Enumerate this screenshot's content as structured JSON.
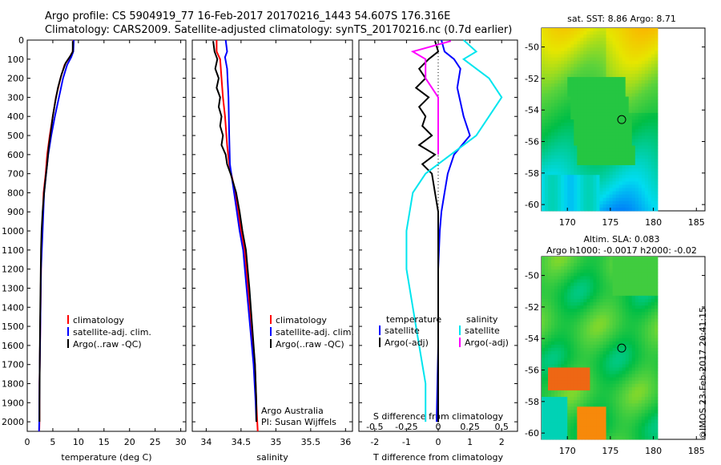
{
  "header": {
    "line1": "Argo profile: CS 5904919_77 16-Feb-2017 20170216_1443 54.607S 176.316E",
    "line2": "Climatology: CARS2009. Satellite-adjusted climatology: synTS_20170216.nc (0.7d earlier)"
  },
  "stamp": "©IMOS 23-Feb-2017 20:41:15",
  "colors": {
    "climatology": "#ff0000",
    "satellite": "#0000ff",
    "argo": "#000000",
    "sat_salinity": "#00e5ee",
    "argo_salinity": "#ff00ff"
  },
  "chart_data": [
    {
      "type": "line",
      "xlabel": "temperature (deg C)",
      "ylabel": "",
      "xlim": [
        0,
        31
      ],
      "ylim": [
        2050,
        0
      ],
      "xticks": [
        "0",
        "5",
        "10",
        "15",
        "20",
        "25",
        "30"
      ],
      "yticks": [
        "0",
        "100",
        "200",
        "300",
        "400",
        "500",
        "600",
        "700",
        "800",
        "900",
        "1000",
        "1100",
        "1200",
        "1300",
        "1400",
        "1500",
        "1600",
        "1700",
        "1800",
        "1900",
        "2000"
      ],
      "legend": [
        "climatology",
        "satellite-adj. clim.",
        "Argo(..raw -QC)"
      ],
      "series": [
        {
          "name": "climatology",
          "color": "#ff0000",
          "points": [
            [
              9.0,
              0
            ],
            [
              8.9,
              60
            ],
            [
              8.3,
              90
            ],
            [
              7.3,
              130
            ],
            [
              6.5,
              200
            ],
            [
              5.6,
              300
            ],
            [
              5.0,
              400
            ],
            [
              4.4,
              500
            ],
            [
              3.9,
              600
            ],
            [
              3.6,
              700
            ],
            [
              3.2,
              800
            ],
            [
              2.9,
              1000
            ],
            [
              2.7,
              1200
            ],
            [
              2.6,
              1400
            ],
            [
              2.5,
              1600
            ],
            [
              2.4,
              1800
            ],
            [
              2.4,
              2000
            ],
            [
              2.35,
              2050
            ]
          ]
        },
        {
          "name": "satellite-adj. clim.",
          "color": "#0000ff",
          "points": [
            [
              9.1,
              0
            ],
            [
              9.0,
              60
            ],
            [
              8.6,
              90
            ],
            [
              7.8,
              130
            ],
            [
              7.0,
              200
            ],
            [
              6.2,
              300
            ],
            [
              5.4,
              400
            ],
            [
              4.7,
              500
            ],
            [
              4.1,
              600
            ],
            [
              3.7,
              700
            ],
            [
              3.3,
              800
            ],
            [
              3.0,
              1000
            ],
            [
              2.7,
              1200
            ],
            [
              2.6,
              1400
            ],
            [
              2.5,
              1600
            ],
            [
              2.4,
              1800
            ],
            [
              2.35,
              2000
            ],
            [
              2.3,
              2050
            ]
          ]
        },
        {
          "name": "Argo(..raw -QC)",
          "color": "#000000",
          "points": [
            [
              8.9,
              5
            ],
            [
              8.9,
              60
            ],
            [
              8.5,
              80
            ],
            [
              7.5,
              120
            ],
            [
              6.7,
              180
            ],
            [
              6.0,
              250
            ],
            [
              5.5,
              320
            ],
            [
              5.0,
              400
            ],
            [
              4.6,
              480
            ],
            [
              4.2,
              560
            ],
            [
              3.9,
              650
            ],
            [
              3.6,
              720
            ],
            [
              3.3,
              800
            ],
            [
              3.0,
              900
            ],
            [
              2.8,
              1000
            ],
            [
              2.7,
              1100
            ],
            [
              2.6,
              1300
            ],
            [
              2.5,
              1500
            ],
            [
              2.45,
              1700
            ],
            [
              2.4,
              1900
            ],
            [
              2.4,
              2000
            ]
          ]
        }
      ]
    },
    {
      "type": "line",
      "xlabel": "salinity",
      "xlim": [
        33.8,
        36.1
      ],
      "ylim": [
        2050,
        0
      ],
      "xticks": [
        "34",
        "34.5",
        "35",
        "35.5",
        "36"
      ],
      "legend": [
        "climatology",
        "satellite-adj. clim.",
        "Argo(..raw -QC)"
      ],
      "annotation": [
        "Argo Australia",
        "PI: Susan Wijffels"
      ],
      "series": [
        {
          "name": "climatology",
          "color": "#ff0000",
          "points": [
            [
              34.15,
              0
            ],
            [
              34.15,
              60
            ],
            [
              34.2,
              100
            ],
            [
              34.22,
              200
            ],
            [
              34.24,
              300
            ],
            [
              34.27,
              400
            ],
            [
              34.3,
              550
            ],
            [
              34.33,
              650
            ],
            [
              34.36,
              700
            ],
            [
              34.42,
              800
            ],
            [
              34.46,
              900
            ],
            [
              34.5,
              1000
            ],
            [
              34.55,
              1100
            ],
            [
              34.6,
              1300
            ],
            [
              34.65,
              1500
            ],
            [
              34.7,
              1700
            ],
            [
              34.72,
              1900
            ],
            [
              34.74,
              2050
            ]
          ]
        },
        {
          "name": "satellite-adj. clim.",
          "color": "#0000ff",
          "points": [
            [
              34.28,
              0
            ],
            [
              34.3,
              60
            ],
            [
              34.27,
              90
            ],
            [
              34.3,
              150
            ],
            [
              34.32,
              300
            ],
            [
              34.33,
              500
            ],
            [
              34.34,
              650
            ],
            [
              34.36,
              700
            ],
            [
              34.4,
              800
            ],
            [
              34.44,
              900
            ],
            [
              34.48,
              1000
            ],
            [
              34.53,
              1100
            ],
            [
              34.58,
              1300
            ],
            [
              34.63,
              1500
            ],
            [
              34.68,
              1700
            ],
            [
              34.71,
              1900
            ],
            [
              34.72,
              2000
            ]
          ]
        },
        {
          "name": "Argo(..raw -QC)",
          "color": "#000000",
          "points": [
            [
              34.1,
              5
            ],
            [
              34.12,
              60
            ],
            [
              34.16,
              100
            ],
            [
              34.13,
              150
            ],
            [
              34.18,
              200
            ],
            [
              34.15,
              250
            ],
            [
              34.2,
              300
            ],
            [
              34.18,
              350
            ],
            [
              34.22,
              400
            ],
            [
              34.2,
              450
            ],
            [
              34.24,
              500
            ],
            [
              34.22,
              550
            ],
            [
              34.28,
              600
            ],
            [
              34.3,
              650
            ],
            [
              34.35,
              700
            ],
            [
              34.43,
              800
            ],
            [
              34.48,
              900
            ],
            [
              34.52,
              1000
            ],
            [
              34.57,
              1100
            ],
            [
              34.62,
              1300
            ],
            [
              34.66,
              1500
            ],
            [
              34.7,
              1700
            ],
            [
              34.72,
              1900
            ],
            [
              34.72,
              2000
            ]
          ]
        }
      ]
    },
    {
      "type": "line",
      "xlabel": "T difference from climatology",
      "xlabel2": "S difference from climatology",
      "xlim": [
        -2.5,
        2.5
      ],
      "ylim": [
        2050,
        0
      ],
      "xticks": [
        "-2",
        "-1",
        "0",
        "1",
        "2"
      ],
      "xticks2": [
        "-0.5",
        "-0.25",
        "0",
        "0.25",
        "0.5"
      ],
      "legend_headers": [
        "temperature",
        "salinity"
      ],
      "legend": [
        "satellite",
        "Argo(-adj)",
        "satellite",
        "Argo(-adj)"
      ],
      "series": [
        {
          "name": "satellite",
          "group": "temperature",
          "color": "#0000ff",
          "points": [
            [
              0.1,
              0
            ],
            [
              0.2,
              60
            ],
            [
              0.5,
              100
            ],
            [
              0.7,
              150
            ],
            [
              0.6,
              250
            ],
            [
              0.8,
              400
            ],
            [
              1.0,
              500
            ],
            [
              0.7,
              560
            ],
            [
              0.5,
              600
            ],
            [
              0.3,
              700
            ],
            [
              0.2,
              800
            ],
            [
              0.1,
              900
            ],
            [
              0.05,
              1000
            ],
            [
              0.0,
              1200
            ],
            [
              0.0,
              1600
            ],
            [
              -0.05,
              2000
            ]
          ]
        },
        {
          "name": "Argo(-adj)",
          "group": "temperature",
          "color": "#000000",
          "points": [
            [
              -0.1,
              5
            ],
            [
              0.0,
              60
            ],
            [
              -0.3,
              100
            ],
            [
              -0.6,
              150
            ],
            [
              -0.4,
              200
            ],
            [
              -0.7,
              250
            ],
            [
              -0.3,
              300
            ],
            [
              -0.6,
              350
            ],
            [
              -0.4,
              400
            ],
            [
              -0.5,
              450
            ],
            [
              -0.2,
              500
            ],
            [
              -0.6,
              550
            ],
            [
              -0.1,
              600
            ],
            [
              -0.5,
              650
            ],
            [
              -0.2,
              700
            ],
            [
              -0.1,
              800
            ],
            [
              0.0,
              900
            ],
            [
              0.0,
              1000
            ],
            [
              0.0,
              1300
            ],
            [
              0.0,
              1600
            ],
            [
              0.0,
              2000
            ]
          ]
        },
        {
          "name": "satellite",
          "group": "salinity",
          "color": "#00e5ee",
          "points": [
            [
              0.2,
              0
            ],
            [
              0.3,
              60
            ],
            [
              0.2,
              100
            ],
            [
              0.3,
              150
            ],
            [
              0.4,
              200
            ],
            [
              0.5,
              300
            ],
            [
              0.4,
              400
            ],
            [
              0.3,
              500
            ],
            [
              0.1,
              600
            ],
            [
              -0.1,
              700
            ],
            [
              -0.2,
              800
            ],
            [
              -0.25,
              1000
            ],
            [
              -0.25,
              1200
            ],
            [
              -0.2,
              1400
            ],
            [
              -0.15,
              1600
            ],
            [
              -0.1,
              1800
            ],
            [
              -0.1,
              2000
            ]
          ]
        },
        {
          "name": "Argo(-adj)",
          "group": "salinity",
          "color": "#ff00ff",
          "points": [
            [
              0.1,
              5
            ],
            [
              -0.2,
              60
            ],
            [
              -0.1,
              100
            ],
            [
              -0.1,
              200
            ],
            [
              0.0,
              300
            ],
            [
              0.0,
              400
            ],
            [
              0.0,
              500
            ],
            [
              0.0,
              600
            ]
          ]
        }
      ]
    },
    {
      "type": "heatmap",
      "title": "sat. SST: 8.86 Argo: 8.71",
      "xlim": [
        167,
        186
      ],
      "ylim": [
        -60.4,
        -48.8
      ],
      "xticks": [
        "170",
        "175",
        "180",
        "185"
      ],
      "yticks": [
        "-50",
        "-52",
        "-54",
        "-56",
        "-58",
        "-60"
      ],
      "marker": {
        "lon": 176.316,
        "lat": -54.607
      }
    },
    {
      "type": "heatmap",
      "title": "Altim. SLA: 0.083",
      "subtitle": "Argo h1000: -0.0017 h2000: -0.02",
      "xlim": [
        167,
        186
      ],
      "ylim": [
        -60.4,
        -48.8
      ],
      "xticks": [
        "170",
        "175",
        "180",
        "185"
      ],
      "yticks": [
        "-50",
        "-52",
        "-54",
        "-56",
        "-58",
        "-60"
      ],
      "marker": {
        "lon": 176.316,
        "lat": -54.607
      }
    }
  ]
}
